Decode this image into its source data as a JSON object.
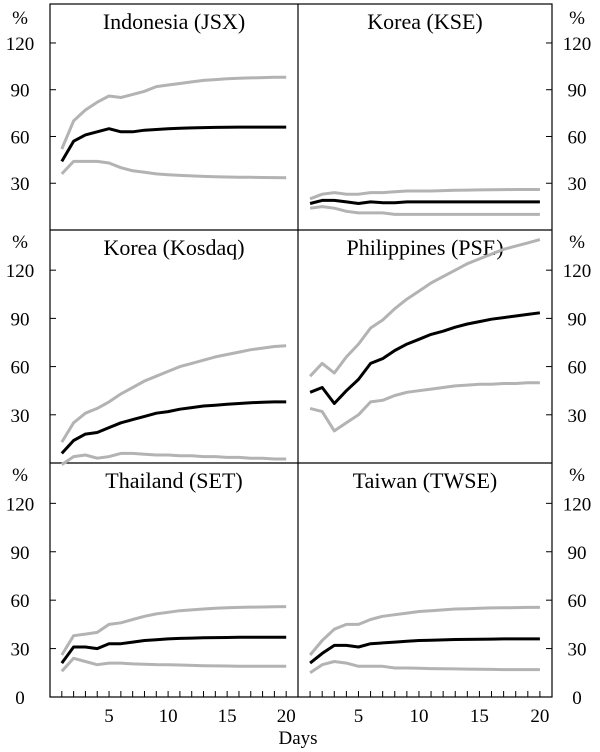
{
  "chart_data": {
    "type": "line",
    "y_unit": "%",
    "xlabel": "Days",
    "x": [
      1,
      2,
      3,
      4,
      5,
      6,
      7,
      8,
      9,
      10,
      11,
      12,
      13,
      14,
      15,
      16,
      17,
      18,
      19,
      20
    ],
    "x_ticks": [
      5,
      10,
      15,
      20
    ],
    "y_ticks": [
      0,
      30,
      60,
      90,
      120
    ],
    "xlim": [
      0,
      21
    ],
    "ylim": [
      0,
      145
    ],
    "colors": {
      "central": "#000000",
      "band": "#b3b3b3"
    },
    "panels": [
      {
        "title": "Indonesia (JSX)",
        "series": [
          {
            "values": [
              52,
              70,
              77,
              82,
              86,
              85,
              87,
              89,
              92,
              93,
              94,
              95,
              96,
              96.5,
              97,
              97.3,
              97.6,
              97.8,
              98,
              98
            ]
          },
          {
            "values": [
              44,
              57,
              61,
              63,
              65,
              63,
              63,
              64,
              64.5,
              65,
              65.3,
              65.5,
              65.7,
              65.8,
              65.9,
              66,
              66,
              66,
              66,
              66
            ]
          },
          {
            "values": [
              36,
              44,
              44,
              44,
              43,
              40,
              38,
              37,
              36,
              35.5,
              35,
              34.7,
              34.4,
              34.2,
              34,
              33.9,
              33.8,
              33.7,
              33.6,
              33.5
            ]
          }
        ]
      },
      {
        "title": "Korea (KSE)",
        "series": [
          {
            "values": [
              20,
              23,
              24,
              23,
              23,
              24,
              24,
              24.5,
              25,
              25,
              25,
              25.3,
              25.5,
              25.6,
              25.7,
              25.8,
              25.9,
              26,
              26,
              26
            ]
          },
          {
            "values": [
              17,
              19,
              19,
              18,
              17,
              18,
              17.5,
              17.5,
              18,
              18,
              18,
              18,
              18,
              18,
              18,
              18,
              18,
              18,
              18,
              18
            ]
          },
          {
            "values": [
              14,
              15,
              14,
              12,
              11,
              11,
              11,
              10,
              10,
              10,
              10,
              10,
              10,
              10,
              10,
              10,
              10,
              10,
              10,
              10
            ]
          }
        ]
      },
      {
        "title": "Korea (Kosdaq)",
        "series": [
          {
            "values": [
              13,
              25,
              31,
              34,
              38,
              43,
              47,
              51,
              54,
              57,
              60,
              62,
              64,
              66,
              67.5,
              69,
              70.5,
              71.5,
              72.5,
              73
            ]
          },
          {
            "values": [
              6,
              14,
              18,
              19,
              22,
              25,
              27,
              29,
              31,
              32,
              33.5,
              34.5,
              35.5,
              36,
              36.5,
              37,
              37.5,
              37.8,
              38,
              38
            ]
          },
          {
            "values": [
              -1,
              4,
              5,
              3,
              4,
              6,
              6,
              5.5,
              5,
              5,
              4.5,
              4.5,
              4,
              4,
              3.5,
              3.5,
              3,
              3,
              2.5,
              2.5
            ]
          }
        ]
      },
      {
        "title": "Philippines (PSE)",
        "series": [
          {
            "values": [
              54,
              62,
              56,
              66,
              74,
              84,
              89,
              96,
              102,
              107,
              112,
              116,
              120,
              124,
              127,
              130,
              133,
              135,
              137,
              139
            ]
          },
          {
            "values": [
              44,
              47,
              37,
              45,
              52,
              62,
              65,
              70,
              74,
              77,
              80,
              82,
              84.5,
              86.5,
              88,
              89.5,
              90.5,
              91.5,
              92.5,
              93.5
            ]
          },
          {
            "values": [
              34,
              32,
              20,
              25,
              30,
              38,
              39,
              42,
              44,
              45,
              46,
              47,
              48,
              48.5,
              49,
              49,
              49.5,
              49.5,
              50,
              50
            ]
          }
        ]
      },
      {
        "title": "Thailand (SET)",
        "series": [
          {
            "values": [
              26,
              38,
              39,
              40,
              45,
              46,
              48,
              50,
              51.5,
              52.5,
              53.5,
              54,
              54.5,
              55,
              55.3,
              55.5,
              55.7,
              55.8,
              55.9,
              56
            ]
          },
          {
            "values": [
              21,
              31,
              31,
              30,
              33,
              33,
              34,
              35,
              35.5,
              36,
              36.3,
              36.5,
              36.7,
              36.8,
              36.9,
              37,
              37,
              37,
              37,
              37
            ]
          },
          {
            "values": [
              16,
              24,
              22,
              20,
              21,
              21,
              20.5,
              20.3,
              20.1,
              20,
              19.8,
              19.6,
              19.4,
              19.3,
              19.2,
              19.1,
              19,
              19,
              19,
              19
            ]
          }
        ]
      },
      {
        "title": "Taiwan (TWSE)",
        "series": [
          {
            "values": [
              26,
              35,
              42,
              45,
              45,
              48,
              50,
              51,
              52,
              53,
              53.5,
              54,
              54.5,
              54.7,
              55,
              55.2,
              55.3,
              55.4,
              55.5,
              55.5
            ]
          },
          {
            "values": [
              21,
              27,
              32,
              32,
              31,
              33,
              33.5,
              34,
              34.5,
              35,
              35.2,
              35.4,
              35.6,
              35.7,
              35.8,
              35.9,
              36,
              36,
              36,
              36
            ]
          },
          {
            "values": [
              15,
              20,
              22,
              21,
              19,
              19,
              19,
              18,
              18,
              17.8,
              17.6,
              17.5,
              17.4,
              17.3,
              17.2,
              17.1,
              17,
              17,
              17,
              17
            ]
          }
        ]
      }
    ]
  }
}
